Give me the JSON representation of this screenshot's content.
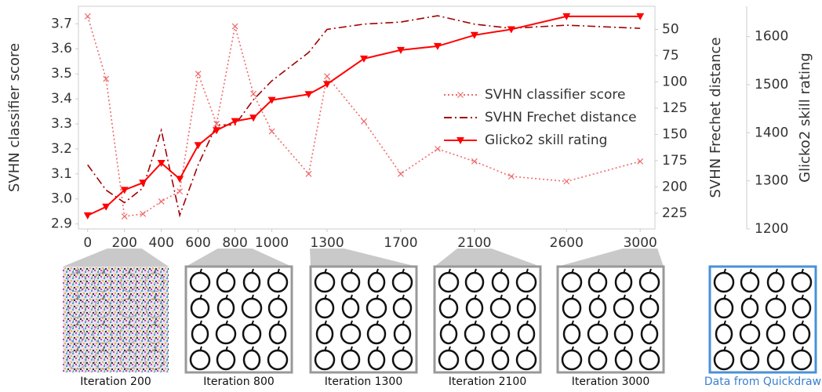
{
  "chart_data": {
    "type": "line",
    "x": [
      0,
      100,
      200,
      300,
      400,
      500,
      600,
      700,
      800,
      900,
      1000,
      1200,
      1300,
      1500,
      1700,
      1900,
      2100,
      2300,
      2600,
      3000
    ],
    "xlim": [
      -50,
      3080
    ],
    "xticks": [
      0,
      200,
      400,
      600,
      800,
      1000,
      1300,
      1700,
      2100,
      2600,
      3000
    ],
    "ylabel": "SVHN classifier score",
    "ylim": [
      2.88,
      3.77
    ],
    "yticks": [
      2.9,
      {
        "value": 3,
        "label": "3.0"
      },
      3.1,
      3.2,
      3.3,
      3.4,
      3.5,
      3.6,
      3.7
    ],
    "y2label": "SVHN Frechet distance",
    "y2lim": [
      240,
      28
    ],
    "y2ticks": [
      50,
      75,
      100,
      125,
      150,
      175,
      200,
      225
    ],
    "y3label": "Glicko2 skill rating",
    "y3lim": [
      1200,
      1663
    ],
    "y3ticks": [
      1200,
      1300,
      1400,
      1500,
      1600
    ],
    "legend": "center right",
    "series": [
      {
        "name": "SVHN classifier score",
        "color": "#f06a6a",
        "style": "dotted",
        "marker": "x",
        "axis": "y",
        "values": [
          3.73,
          3.48,
          2.93,
          2.94,
          2.99,
          3.03,
          3.5,
          3.3,
          3.69,
          3.42,
          3.27,
          3.1,
          3.49,
          3.31,
          3.1,
          3.2,
          3.15,
          3.09,
          3.07,
          3.15
        ]
      },
      {
        "name": "SVHN Frechet distance",
        "color": "#a30000",
        "style": "dashdot",
        "marker": "none",
        "axis": "y2",
        "values": [
          179,
          203,
          215,
          201,
          146,
          227,
          179,
          141,
          141,
          117,
          99,
          72,
          50,
          45,
          43,
          37,
          45,
          49,
          46,
          49
        ]
      },
      {
        "name": "Glicko2 skill rating",
        "color": "#ff0000",
        "style": "solid",
        "marker": "v",
        "axis": "y3",
        "values": [
          1228,
          1246,
          1281,
          1296,
          1337,
          1304,
          1374,
          1405,
          1424,
          1431,
          1468,
          1480,
          1501,
          1554,
          1572,
          1580,
          1603,
          1615,
          1642,
          1642
        ]
      }
    ]
  },
  "images": [
    {
      "caption": "Iteration 200"
    },
    {
      "caption": "Iteration 800"
    },
    {
      "caption": "Iteration 1300"
    },
    {
      "caption": "Iteration 2100"
    },
    {
      "caption": "Iteration 3000"
    },
    {
      "caption": "Data from Quickdraw"
    }
  ]
}
